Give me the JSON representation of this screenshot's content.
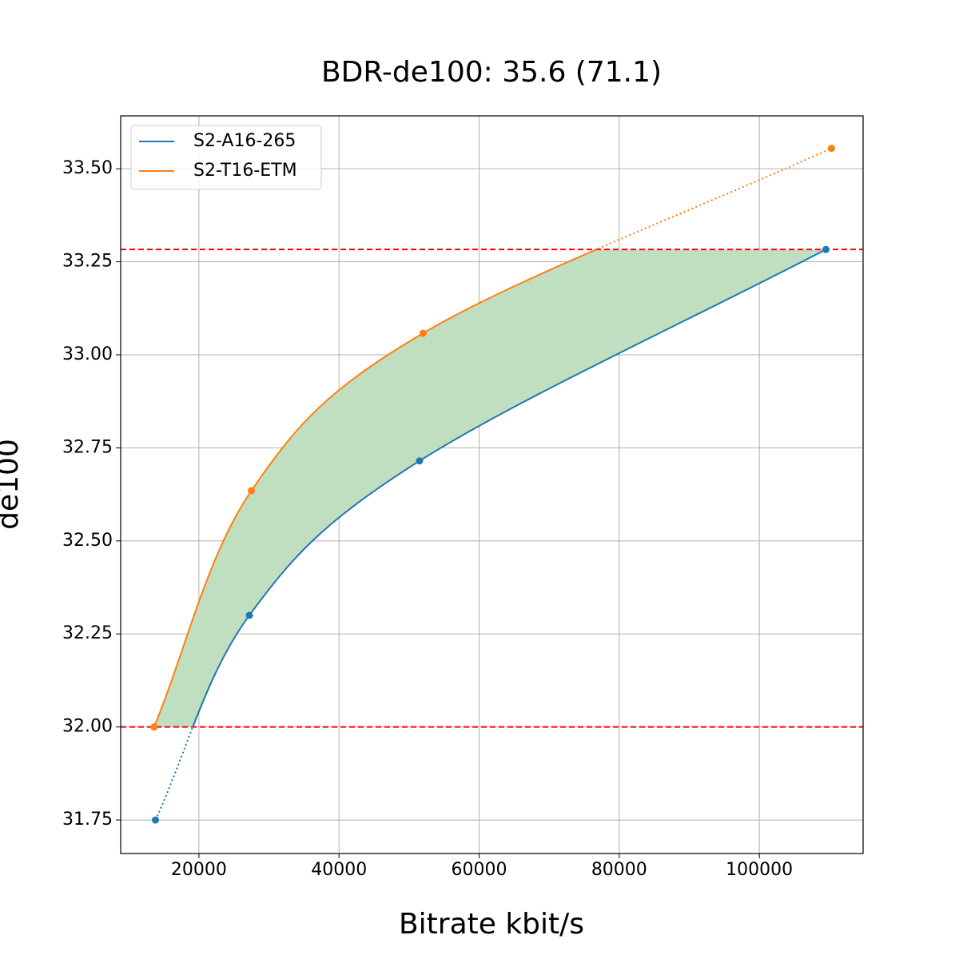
{
  "chart_data": {
    "type": "line",
    "title": "BDR-de100: 35.6 (71.1)",
    "x_label": "Bitrate kbit/s",
    "y_label": "de100",
    "series": [
      {
        "name": "S2-A16-265",
        "color": "#1f77b4",
        "x": [
          13800,
          27200,
          51500,
          109500
        ],
        "values": [
          31.75,
          32.3,
          32.715,
          33.283
        ]
      },
      {
        "name": "S2-T16-ETM",
        "color": "#ff7f0e",
        "x": [
          13600,
          27500,
          52000,
          110300
        ],
        "values": [
          32.0,
          32.635,
          33.058,
          33.555
        ]
      }
    ],
    "hlines": [
      32.0,
      33.283
    ],
    "hline_color": "#ff0000",
    "fill_color": "#c0dfc0",
    "xlim": [
      8832,
      114815
    ],
    "ylim": [
      31.66,
      33.642
    ],
    "xticks": [
      20000,
      40000,
      60000,
      80000,
      100000
    ],
    "yticks": [
      31.75,
      {
        "value": 32.0,
        "label": "32.00"
      },
      32.25,
      {
        "value": 32.5,
        "label": "32.50"
      },
      32.75,
      {
        "value": 33.0,
        "label": "33.00"
      },
      33.25,
      {
        "value": 33.5,
        "label": "33.50"
      }
    ],
    "grid": true,
    "legend": "upper left"
  }
}
